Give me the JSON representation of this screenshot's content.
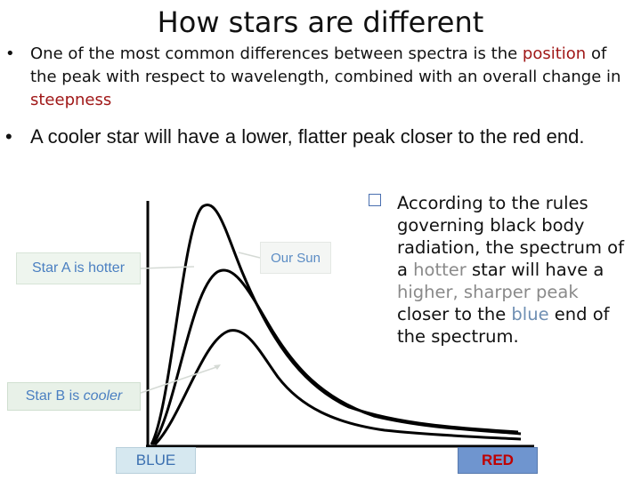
{
  "slide": {
    "title": "How stars are different",
    "bullet1": {
      "a": "One of the most common differences between spectra is the",
      "b": "position",
      "c": "of the peak with respect to wavelength, combined with an overall change in",
      "d": "steepness"
    },
    "bullet2": "A cooler star will have a lower, flatter peak closer to the red end.",
    "right": {
      "t1": "According to the rules governing black body radiation, the spectrum of a",
      "t2": "hotter",
      "t3": "star will have a",
      "t4": "higher, sharper peak",
      "t5": "closer to the",
      "t6": "blue",
      "t7": "end of the spectrum."
    },
    "labels": {
      "starA": "Star A is hotter",
      "ourSun": "Our Sun",
      "starB_a": "Star B  is",
      "starB_b": "cooler",
      "blue": "BLUE",
      "red": "RED"
    },
    "colors": {
      "accent_red": "#a01818",
      "highlight_gray": "#8a8a8a",
      "blue_word": "#6f8fb3"
    }
  }
}
